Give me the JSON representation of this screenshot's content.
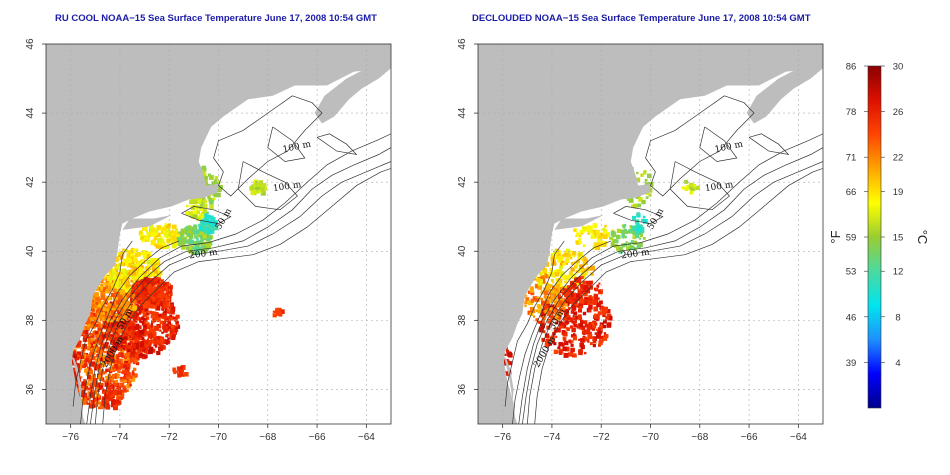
{
  "panels": [
    {
      "title": "RU COOL NOAA−15 Sea Surface Temperature June 17, 2008 10:54 GMT",
      "kind": "full"
    },
    {
      "title": "DECLOUDED NOAA−15 Sea Surface Temperature June 17, 2008 10:54 GMT",
      "kind": "declouded"
    }
  ],
  "axes": {
    "x_ticks": [
      "−76",
      "−74",
      "−72",
      "−70",
      "−68",
      "−66",
      "−64"
    ],
    "x_values": [
      -76,
      -74,
      -72,
      -70,
      -68,
      -66,
      -64
    ],
    "y_ticks": [
      "36",
      "38",
      "40",
      "42",
      "44",
      "46"
    ],
    "y_values": [
      36,
      38,
      40,
      42,
      44,
      46
    ],
    "lon_range": [
      -77,
      -63
    ],
    "lat_range": [
      35,
      46
    ],
    "grid": "dotted"
  },
  "isobaths": {
    "labels": [
      "100 m",
      "100 m",
      "50 m",
      "200 m",
      "50 m",
      "2000 m"
    ]
  },
  "colorbar": {
    "unit_f": "°F",
    "unit_c": "°C",
    "f_ticks": [
      "86",
      "78",
      "71",
      "66",
      "59",
      "53",
      "46",
      "39"
    ],
    "c_ticks": [
      "30",
      "26",
      "22",
      "19",
      "15",
      "12",
      "8",
      "4"
    ],
    "c_values": [
      30,
      26,
      22,
      19,
      15,
      12,
      8,
      4
    ],
    "c_range": [
      0,
      30
    ],
    "colors": [
      "#00008b",
      "#0000ff",
      "#1e90ff",
      "#00e5ee",
      "#4cd9a0",
      "#9acd32",
      "#ffff00",
      "#ffa500",
      "#ff4500",
      "#dd1000",
      "#8b0000"
    ]
  },
  "land_color": "#bdbdbd",
  "ocean_color": "#ffffff"
}
